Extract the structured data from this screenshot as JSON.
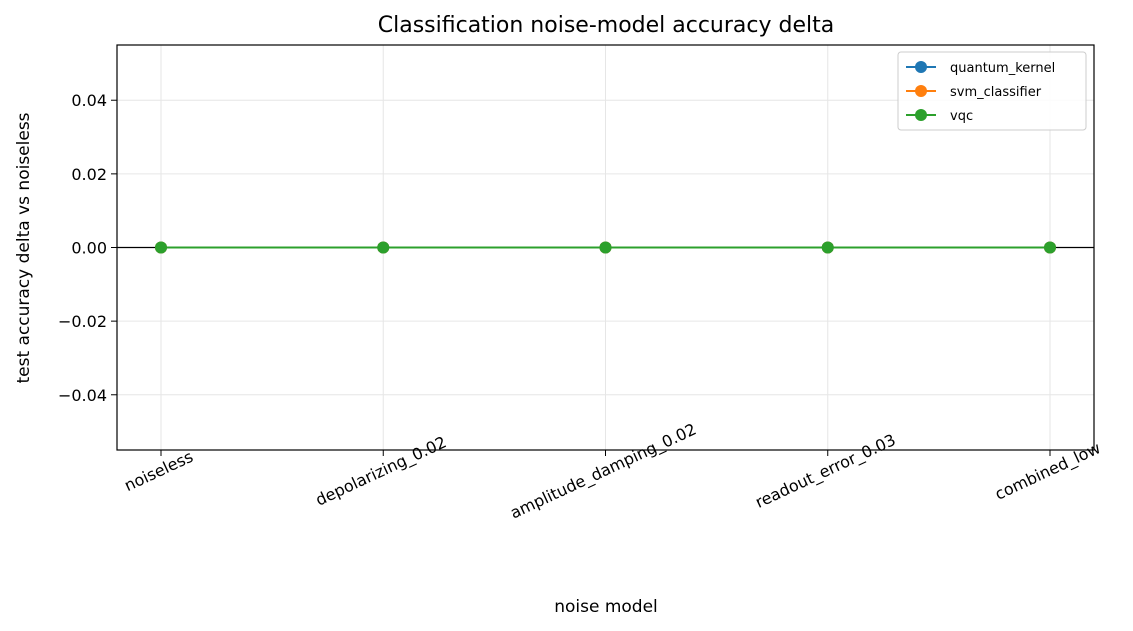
{
  "chart_data": {
    "type": "line",
    "title": "Classification noise-model accuracy delta",
    "xlabel": "noise model",
    "ylabel": "test accuracy delta vs noiseless",
    "categories": [
      "noiseless",
      "depolarizing_0.02",
      "amplitude_damping_0.02",
      "readout_error_0.03",
      "combined_low"
    ],
    "ylim": [
      -0.055,
      0.055
    ],
    "yticks": [
      0.04,
      0.02,
      0.0,
      -0.02,
      -0.04
    ],
    "ytick_labels": [
      "0.04",
      "0.02",
      "0.00",
      "−0.02",
      "−0.04"
    ],
    "grid": true,
    "zero_line": true,
    "legend_position": "top-right",
    "series": [
      {
        "name": "quantum_kernel",
        "color": "#1f77b4",
        "values": [
          0,
          0,
          0,
          0,
          0
        ]
      },
      {
        "name": "svm_classifier",
        "color": "#ff7f0e",
        "values": [
          0,
          0,
          0,
          0,
          0
        ]
      },
      {
        "name": "vqc",
        "color": "#2ca02c",
        "values": [
          0,
          0,
          0,
          0,
          0
        ]
      }
    ]
  }
}
